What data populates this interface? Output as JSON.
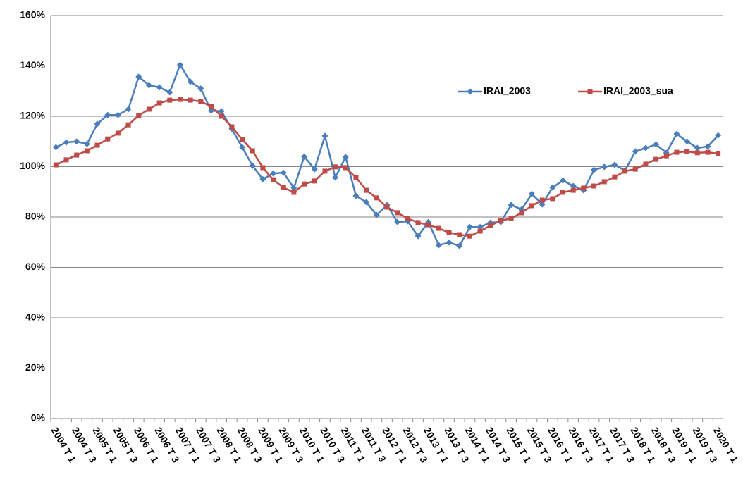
{
  "chart_data": {
    "type": "line",
    "categories": [
      "2004 T 1",
      null,
      "2004 T 3",
      null,
      "2005 T 1",
      null,
      "2005 T 3",
      null,
      "2006 T 1",
      null,
      "2006 T 3",
      null,
      "2007 T 1",
      null,
      "2007 T 3",
      null,
      "2008 T 1",
      null,
      "2008 T 3",
      null,
      "2009 T 1",
      null,
      "2009 T 3",
      null,
      "2010 T 1",
      null,
      "2010 T 3",
      null,
      "2011 T 1",
      null,
      "2011 T 3",
      null,
      "2012 T 1",
      null,
      "2012 T 3",
      null,
      "2013 T 1",
      null,
      "2013 T 3",
      null,
      "2014 T 1",
      null,
      "2014 T 3",
      null,
      "2015 T 1",
      null,
      "2015 T 3",
      null,
      "2016 T 1",
      null,
      "2016 T 3",
      null,
      "2017 T 1",
      null,
      "2017 T 3",
      null,
      "2018 T 1",
      null,
      "2018 T 3",
      null,
      "2019 T 1",
      null,
      "2019 T 3",
      null,
      "2020 T 1"
    ],
    "series": [
      {
        "name": "IRAI_2003",
        "color": "#4a7ebb",
        "marker": "diamond",
        "values": [
          107.7,
          109.6,
          110,
          109,
          117,
          120.5,
          120.5,
          122.8,
          135.7,
          132.3,
          131.5,
          129.5,
          140.4,
          133.7,
          131,
          122.2,
          122,
          115,
          107.7,
          100.4,
          95,
          97.3,
          97.6,
          91.5,
          104,
          99,
          112.2,
          95.7,
          103.8,
          88.4,
          85.9,
          80.8,
          84.8,
          78,
          78.3,
          72.4,
          78,
          68.8,
          69.9,
          68.5,
          76,
          76,
          77.8,
          78,
          84.8,
          83,
          89.2,
          85,
          91.7,
          94.5,
          92.3,
          90.6,
          98.7,
          99.9,
          100.7,
          98.5,
          106,
          107.4,
          108.8,
          105.5,
          113,
          110,
          107.4,
          108,
          112.4
        ]
      },
      {
        "name": "IRAI_2003_sua",
        "color": "#be4b48",
        "marker": "square",
        "values": [
          100.7,
          102.7,
          104.6,
          106.3,
          108.5,
          111,
          113.3,
          116.6,
          120.3,
          122.8,
          125.3,
          126.4,
          126.7,
          126.4,
          125.9,
          123.9,
          120,
          115.8,
          110.8,
          106.3,
          99.6,
          94.8,
          91.7,
          89.8,
          93.1,
          94.3,
          98.2,
          99.9,
          99.6,
          95.7,
          90.6,
          87.6,
          83.9,
          81.7,
          79.4,
          77.8,
          76.9,
          75.5,
          73.8,
          73,
          72.4,
          74.4,
          76.6,
          78.6,
          79.4,
          81.7,
          84.5,
          86.7,
          87.3,
          89.8,
          90.6,
          91.5,
          92.3,
          94,
          95.9,
          98.2,
          99,
          101,
          102.9,
          104.3,
          105.7,
          106,
          105.5,
          105.7,
          105.2
        ]
      }
    ],
    "ylim": [
      0,
      160
    ],
    "yticks": [
      {
        "value": 0,
        "label": "0%"
      },
      {
        "value": 20,
        "label": "20%"
      },
      {
        "value": 40,
        "label": "40%"
      },
      {
        "value": 60,
        "label": "60%"
      },
      {
        "value": 80,
        "label": "80%"
      },
      {
        "value": 100,
        "label": "100%"
      },
      {
        "value": 120,
        "label": "120%"
      },
      {
        "value": 140,
        "label": "140%"
      },
      {
        "value": 160,
        "label": "160%"
      }
    ],
    "grid": true,
    "legend": "top-right"
  }
}
